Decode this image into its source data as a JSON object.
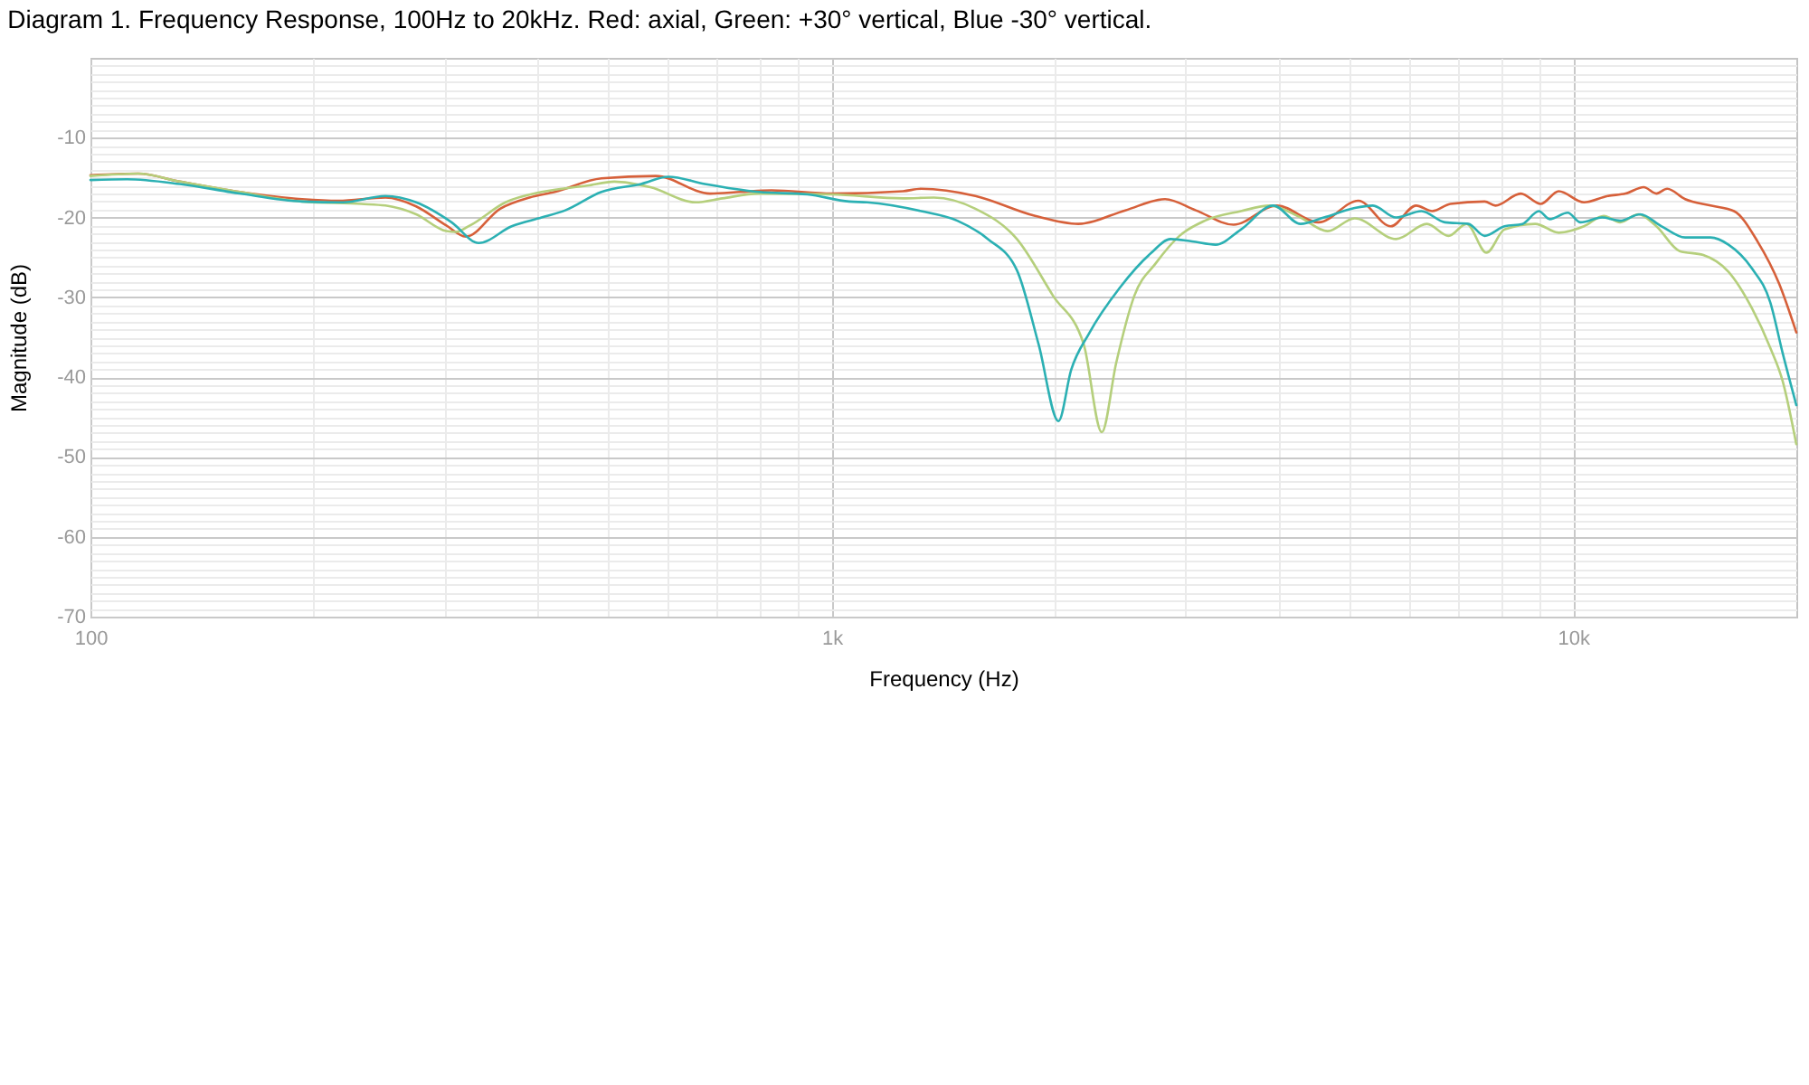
{
  "chart_data": {
    "type": "line",
    "title": "Diagram 1. Frequency Response, 100Hz to 20kHz. Red: axial, Green: +30° vertical, Blue -30° vertical.",
    "xlabel": "Frequency (Hz)",
    "ylabel": "Magnitude (dB)",
    "log": "x",
    "grid": true,
    "xlim": [
      100,
      20000
    ],
    "xticks": [
      100,
      {
        "value": 200,
        "label": null
      },
      {
        "value": 300,
        "label": null
      },
      {
        "value": 400,
        "label": null
      },
      {
        "value": 500,
        "label": null
      },
      {
        "value": 600,
        "label": null
      },
      {
        "value": 700,
        "label": null
      },
      {
        "value": 800,
        "label": null
      },
      {
        "value": 900,
        "label": null
      },
      {
        "value": 1000,
        "label": "1k"
      },
      {
        "value": 2000,
        "label": null
      },
      {
        "value": 3000,
        "label": null
      },
      {
        "value": 4000,
        "label": null
      },
      {
        "value": 5000,
        "label": null
      },
      {
        "value": 6000,
        "label": null
      },
      {
        "value": 7000,
        "label": null
      },
      {
        "value": 8000,
        "label": null
      },
      {
        "value": 9000,
        "label": null
      },
      {
        "value": 10000,
        "label": "10k"
      }
    ],
    "ylim": [
      -70,
      0
    ],
    "yticks": [
      -70,
      {
        "value": -69,
        "label": null
      },
      {
        "value": -68,
        "label": null
      },
      {
        "value": -67,
        "label": null
      },
      {
        "value": -66,
        "label": null
      },
      {
        "value": -65,
        "label": null
      },
      {
        "value": -64,
        "label": null
      },
      {
        "value": -63,
        "label": null
      },
      {
        "value": -62,
        "label": null
      },
      {
        "value": -61,
        "label": null
      },
      -60,
      {
        "value": -59,
        "label": null
      },
      {
        "value": -58,
        "label": null
      },
      {
        "value": -57,
        "label": null
      },
      {
        "value": -56,
        "label": null
      },
      {
        "value": -55,
        "label": null
      },
      {
        "value": -54,
        "label": null
      },
      {
        "value": -53,
        "label": null
      },
      {
        "value": -52,
        "label": null
      },
      {
        "value": -51,
        "label": null
      },
      -50,
      {
        "value": -49,
        "label": null
      },
      {
        "value": -48,
        "label": null
      },
      {
        "value": -47,
        "label": null
      },
      {
        "value": -46,
        "label": null
      },
      {
        "value": -45,
        "label": null
      },
      {
        "value": -44,
        "label": null
      },
      {
        "value": -43,
        "label": null
      },
      {
        "value": -42,
        "label": null
      },
      {
        "value": -41,
        "label": null
      },
      -40,
      {
        "value": -39,
        "label": null
      },
      {
        "value": -38,
        "label": null
      },
      {
        "value": -37,
        "label": null
      },
      {
        "value": -36,
        "label": null
      },
      {
        "value": -35,
        "label": null
      },
      {
        "value": -34,
        "label": null
      },
      {
        "value": -33,
        "label": null
      },
      {
        "value": -32,
        "label": null
      },
      {
        "value": -31,
        "label": null
      },
      -30,
      {
        "value": -29,
        "label": null
      },
      {
        "value": -28,
        "label": null
      },
      {
        "value": -27,
        "label": null
      },
      {
        "value": -26,
        "label": null
      },
      {
        "value": -25,
        "label": null
      },
      {
        "value": -24,
        "label": null
      },
      {
        "value": -23,
        "label": null
      },
      {
        "value": -22,
        "label": null
      },
      {
        "value": -21,
        "label": null
      },
      -20,
      {
        "value": -19,
        "label": null
      },
      {
        "value": -18,
        "label": null
      },
      {
        "value": -17,
        "label": null
      },
      {
        "value": -16,
        "label": null
      },
      {
        "value": -15,
        "label": null
      },
      {
        "value": -14,
        "label": null
      },
      {
        "value": -13,
        "label": null
      },
      {
        "value": -12,
        "label": null
      },
      {
        "value": -11,
        "label": null
      },
      -10,
      {
        "value": -9,
        "label": null
      },
      {
        "value": -8,
        "label": null
      },
      {
        "value": -7,
        "label": null
      },
      {
        "value": -6,
        "label": null
      },
      {
        "value": -5,
        "label": null
      },
      {
        "value": -4,
        "label": null
      },
      {
        "value": -3,
        "label": null
      },
      {
        "value": -2,
        "label": null
      },
      {
        "value": -1,
        "label": null
      }
    ],
    "series": [
      {
        "color": "#d6603a",
        "x": [
          100,
          116,
          132,
          159,
          193,
          216,
          250,
          275,
          302,
          321,
          357,
          391,
          423,
          489,
          579,
          685,
          753,
          829,
          1000,
          1248,
          1320,
          1562,
          1880,
          2150,
          2488,
          2815,
          3097,
          3483,
          3985,
          4535,
          5131,
          5675,
          6139,
          6457,
          6828,
          7596,
          7855,
          8498,
          9039,
          9561,
          10340,
          11130,
          11770,
          12450,
          12950,
          13390,
          14160,
          15320,
          16480,
          17730,
          18960,
          20000
        ],
        "values": [
          -14.7,
          -14.5,
          -15.5,
          -16.8,
          -17.7,
          -17.9,
          -17.5,
          -18.6,
          -21.0,
          -22.4,
          -18.9,
          -17.5,
          -16.8,
          -15.1,
          -14.8,
          -17.0,
          -16.8,
          -16.6,
          -17.0,
          -16.7,
          -16.4,
          -17.3,
          -19.8,
          -20.8,
          -19.1,
          -17.7,
          -19.1,
          -20.9,
          -18.5,
          -20.6,
          -17.9,
          -21.1,
          -18.5,
          -19.2,
          -18.3,
          -18.0,
          -18.5,
          -17.0,
          -18.3,
          -16.7,
          -18.1,
          -17.3,
          -17.0,
          -16.2,
          -17.0,
          -16.4,
          -17.7,
          -18.5,
          -19.2,
          -23.0,
          -28.3,
          -34.4
        ]
      },
      {
        "color": "#b5cf7c",
        "x": [
          100,
          116,
          132,
          159,
          193,
          232,
          250,
          275,
          302,
          311,
          325,
          363,
          406,
          468,
          509,
          569,
          655,
          712,
          797,
          1000,
          1248,
          1373,
          1562,
          1777,
          1988,
          2187,
          2313,
          2419,
          2559,
          2737,
          2944,
          3185,
          3563,
          3896,
          4287,
          4664,
          5073,
          5771,
          6349,
          6790,
          7182,
          7639,
          8079,
          8887,
          9561,
          10340,
          11000,
          11570,
          12240,
          12950,
          13920,
          14980,
          16200,
          17430,
          18440,
          19170,
          20000
        ],
        "values": [
          -14.8,
          -14.5,
          -15.5,
          -16.8,
          -18.0,
          -18.3,
          -18.5,
          -19.6,
          -21.7,
          -21.8,
          -21.0,
          -18.1,
          -16.8,
          -16.0,
          -15.5,
          -16.2,
          -18.1,
          -17.6,
          -17.0,
          -17.1,
          -17.6,
          -17.5,
          -18.9,
          -22.7,
          -29.8,
          -35.9,
          -46.9,
          -38.2,
          -29.8,
          -25.7,
          -22.3,
          -20.4,
          -19.2,
          -18.5,
          -20.0,
          -21.7,
          -20.1,
          -22.7,
          -20.8,
          -22.3,
          -20.8,
          -24.4,
          -21.5,
          -20.8,
          -21.9,
          -21.1,
          -19.8,
          -20.6,
          -19.6,
          -21.1,
          -24.2,
          -24.7,
          -26.8,
          -31.4,
          -36.3,
          -40.5,
          -48.4
        ]
      },
      {
        "color": "#2bb0b3",
        "x": [
          100,
          112,
          132,
          159,
          193,
          219,
          250,
          275,
          307,
          334,
          370,
          406,
          437,
          489,
          553,
          602,
          674,
          797,
          927,
          1055,
          1116,
          1320,
          1477,
          1624,
          1777,
          1901,
          2022,
          2103,
          2224,
          2446,
          2692,
          2863,
          3062,
          3294,
          3563,
          3940,
          4287,
          4612,
          5073,
          5364,
          5771,
          6243,
          6714,
          7222,
          7596,
          8079,
          8546,
          8988,
          9297,
          9833,
          10230,
          10940,
          11570,
          12310,
          13160,
          14160,
          15320,
          16200,
          17430,
          18440,
          19170,
          20000
        ],
        "values": [
          -15.3,
          -15.2,
          -15.8,
          -17.0,
          -18.0,
          -18.1,
          -17.3,
          -18.1,
          -20.6,
          -23.2,
          -21.1,
          -20.0,
          -19.1,
          -16.8,
          -15.8,
          -14.9,
          -15.8,
          -16.8,
          -17.1,
          -18.0,
          -18.1,
          -19.2,
          -20.4,
          -22.7,
          -26.6,
          -35.9,
          -45.5,
          -39.1,
          -34.5,
          -28.8,
          -24.5,
          -22.7,
          -23.0,
          -23.4,
          -21.5,
          -18.5,
          -20.8,
          -20.0,
          -18.8,
          -18.5,
          -20.0,
          -19.2,
          -20.6,
          -20.8,
          -22.3,
          -21.1,
          -20.8,
          -19.2,
          -20.2,
          -19.4,
          -20.6,
          -20.0,
          -20.4,
          -19.6,
          -21.1,
          -22.5,
          -22.5,
          -23.4,
          -26.4,
          -30.6,
          -37.0,
          -43.5
        ]
      }
    ]
  }
}
